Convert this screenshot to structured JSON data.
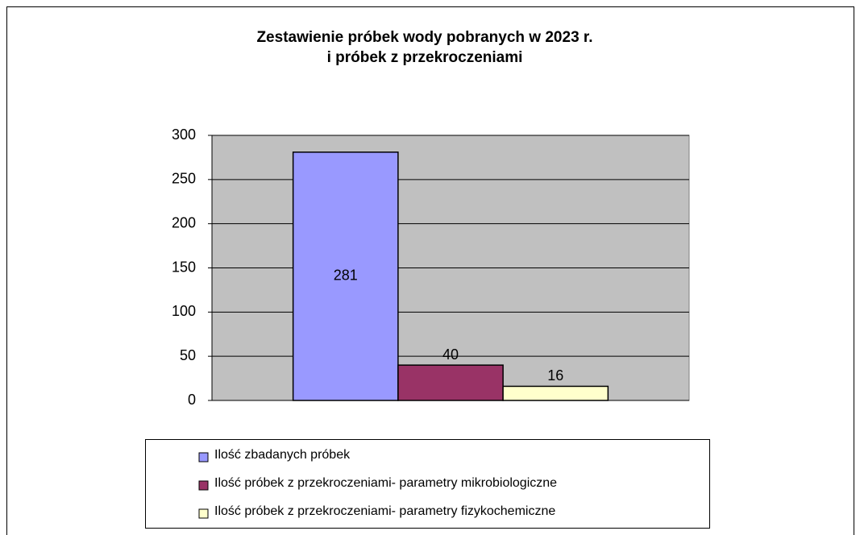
{
  "chart_data": {
    "type": "bar",
    "title": [
      "Zestawienie próbek wody pobranych w 2023 r.",
      "i próbek z przekroczeniami"
    ],
    "categories": [
      null
    ],
    "series": [
      {
        "name": "Ilość zbadanych próbek",
        "color": "#9999ff",
        "values": [
          281
        ]
      },
      {
        "name": "Ilość próbek z przekroczeniami- parametry mikrobiologiczne",
        "color": "#993366",
        "values": [
          40
        ]
      },
      {
        "name": "Ilość próbek z przekroczeniami- parametry fizykochemiczne",
        "color": "#ffffcc",
        "values": [
          16
        ]
      }
    ],
    "ylim": [
      0,
      300
    ],
    "yticks": [
      0,
      50,
      100,
      150,
      200,
      250,
      300
    ],
    "grid": true,
    "legend": "bottom"
  }
}
